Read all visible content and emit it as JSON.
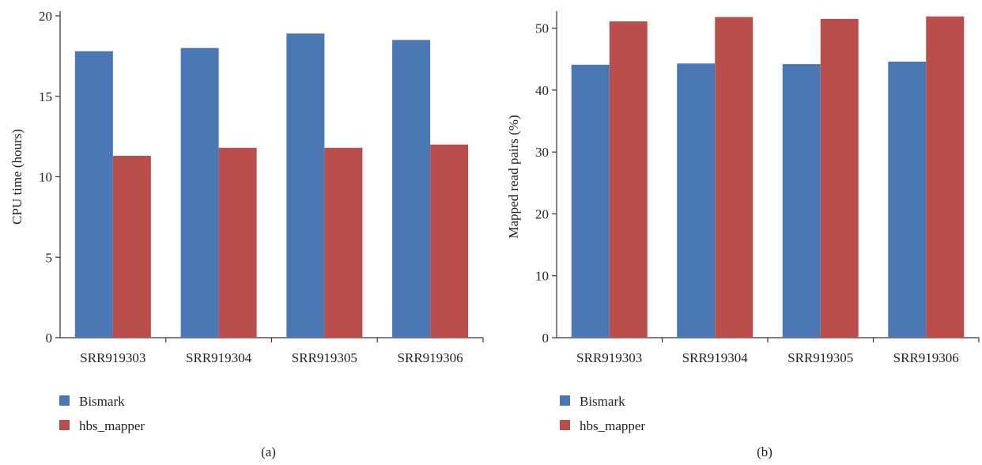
{
  "colors": {
    "bismark": "#4b78b4",
    "hbs_mapper": "#b94e4c",
    "axis": "#333333"
  },
  "chart_data": [
    {
      "type": "bar",
      "panel_label": "(a)",
      "ylabel": "CPU time (hours)",
      "ylim": [
        0,
        20
      ],
      "yticks": [
        0,
        5,
        10,
        15,
        20
      ],
      "categories": [
        "SRR919303",
        "SRR919304",
        "SRR919305",
        "SRR919306"
      ],
      "series": [
        {
          "name": "Bismark",
          "values": [
            17.8,
            18.0,
            18.9,
            18.5
          ]
        },
        {
          "name": "hbs_mapper",
          "values": [
            11.3,
            11.8,
            11.8,
            12.0
          ]
        }
      ],
      "legend": "bottom-left",
      "grid": false
    },
    {
      "type": "bar",
      "panel_label": "(b)",
      "ylabel": "Mapped read pairs (%)",
      "ylim": [
        0,
        52
      ],
      "yticks": [
        0,
        10,
        20,
        30,
        40,
        50
      ],
      "categories": [
        "SRR919303",
        "SRR919304",
        "SRR919305",
        "SRR919306"
      ],
      "series": [
        {
          "name": "Bismark",
          "values": [
            44.1,
            44.3,
            44.2,
            44.6
          ]
        },
        {
          "name": "hbs_mapper",
          "values": [
            51.1,
            51.8,
            51.5,
            51.9
          ]
        }
      ],
      "legend": "bottom-left",
      "grid": false
    }
  ]
}
